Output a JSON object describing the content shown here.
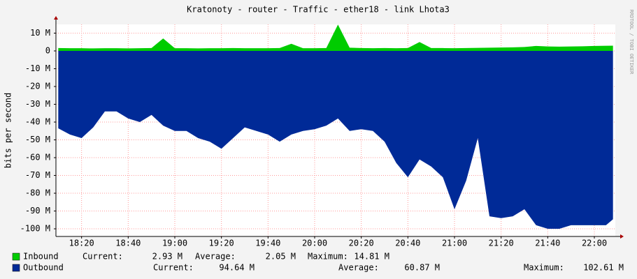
{
  "chart_data": {
    "type": "area",
    "title": "Kratonoty - router - Traffic - ether18 - link Lhota3",
    "y_label": "bits per second",
    "credit": "RRDTOOL / TOBI OETIKER",
    "x": [
      "18:10",
      "18:15",
      "18:20",
      "18:25",
      "18:30",
      "18:35",
      "18:40",
      "18:45",
      "18:50",
      "18:55",
      "19:00",
      "19:05",
      "19:10",
      "19:15",
      "19:20",
      "19:25",
      "19:30",
      "19:35",
      "19:40",
      "19:45",
      "19:50",
      "19:55",
      "20:00",
      "20:05",
      "20:10",
      "20:15",
      "20:20",
      "20:25",
      "20:30",
      "20:35",
      "20:40",
      "20:45",
      "20:50",
      "20:55",
      "21:00",
      "21:05",
      "21:10",
      "21:15",
      "21:20",
      "21:25",
      "21:30",
      "21:35",
      "21:40",
      "21:45",
      "21:50",
      "21:55",
      "22:00",
      "22:05",
      "22:08"
    ],
    "xlim": [
      "18:09",
      "22:09"
    ],
    "xticks": [
      "18:20",
      "18:40",
      "19:00",
      "19:20",
      "19:40",
      "20:00",
      "20:20",
      "20:40",
      "21:00",
      "21:20",
      "21:40",
      "22:00"
    ],
    "ylim": [
      -104.3,
      14.9
    ],
    "yticks": [
      {
        "value": 10,
        "label": "10 M"
      },
      0,
      {
        "value": -10,
        "label": "-10 M"
      },
      {
        "value": -20,
        "label": "-20 M"
      },
      {
        "value": -30,
        "label": "-30 M"
      },
      {
        "value": -40,
        "label": "-40 M"
      },
      {
        "value": -50,
        "label": "-50 M"
      },
      {
        "value": -60,
        "label": "-60 M"
      },
      {
        "value": -70,
        "label": "-70 M"
      },
      {
        "value": -80,
        "label": "-80 M"
      },
      {
        "value": -90,
        "label": "-90 M"
      },
      {
        "value": -100,
        "label": "-100 M"
      }
    ],
    "grid": true,
    "stat_labels": [
      "Current:",
      "Average:",
      "Maximum:"
    ],
    "series": [
      {
        "name": "Inbound",
        "color": "#00cc00",
        "stats": [
          "2.93 M",
          "2.05 M",
          "14.81 M"
        ],
        "values": [
          1.6,
          1.5,
          1.5,
          1.4,
          1.5,
          1.5,
          1.4,
          1.5,
          1.6,
          7,
          1.5,
          1.5,
          1.4,
          1.5,
          1.5,
          1.6,
          1.5,
          1.5,
          1.5,
          1.6,
          4,
          1.5,
          1.5,
          1.6,
          14.81,
          1.8,
          1.6,
          1.5,
          1.6,
          1.5,
          1.6,
          5,
          1.6,
          1.6,
          1.5,
          1.6,
          1.7,
          1.8,
          1.9,
          2.0,
          2.2,
          2.8,
          2.5,
          2.4,
          2.5,
          2.6,
          2.8,
          2.9,
          2.93
        ]
      },
      {
        "name": "Outbound",
        "color": "#002a97",
        "stats": [
          "94.64 M",
          "60.87 M",
          "102.61 M"
        ],
        "values": [
          -43.5,
          -47,
          -49,
          -43,
          -34,
          -34,
          -38,
          -40,
          -36,
          -42,
          -45,
          -45,
          -49,
          -51,
          -55,
          -49,
          -43,
          -45,
          -47,
          -51,
          -47,
          -45,
          -44,
          -42,
          -38,
          -45,
          -44,
          -45,
          -51,
          -63,
          -71,
          -61,
          -65,
          -71,
          -89,
          -73,
          -49,
          -93,
          -94,
          -93,
          -89,
          -98,
          -100,
          -100,
          -98,
          -98,
          -98,
          -98,
          -94.64
        ]
      }
    ]
  }
}
